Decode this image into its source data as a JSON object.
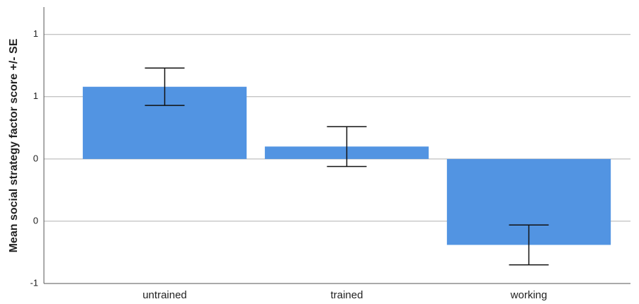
{
  "chart_data": {
    "type": "bar",
    "ylabel": "Mean social strategy factor score +/- SE",
    "categories": [
      "untrained",
      "trained",
      "working"
    ],
    "values": [
      0.58,
      0.1,
      -0.69
    ],
    "errors": [
      0.15,
      0.16,
      0.16
    ],
    "color": "#5294e2",
    "ylim": [
      -1,
      1.22
    ],
    "yticks": [
      {
        "value": 1,
        "label": "1"
      },
      {
        "value": 0.5,
        "label": "1"
      },
      {
        "value": 0,
        "label": "0"
      },
      {
        "value": -0.5,
        "label": "0"
      },
      {
        "value": -1,
        "label": "-1"
      }
    ],
    "grid": true
  }
}
